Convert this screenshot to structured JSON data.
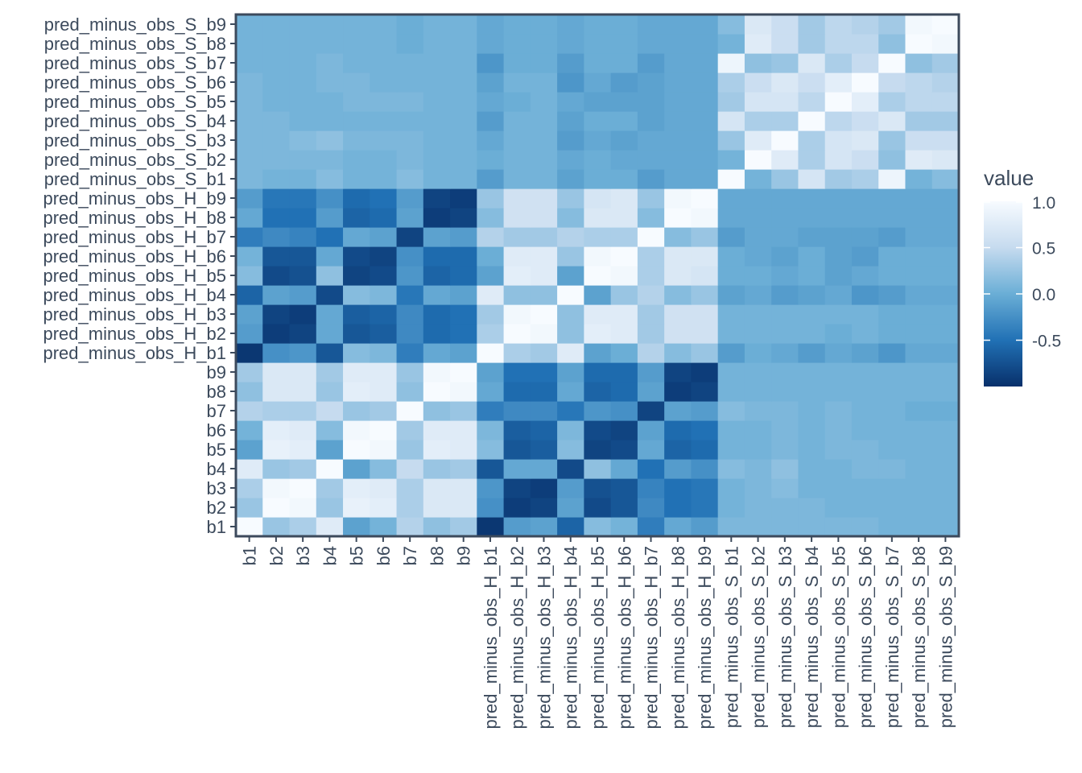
{
  "chart_data": {
    "type": "heatmap",
    "title": "",
    "xlabel": "",
    "ylabel": "",
    "categories": [
      "b1",
      "b2",
      "b3",
      "b4",
      "b5",
      "b6",
      "b7",
      "b8",
      "b9",
      "pred_minus_obs_H_b1",
      "pred_minus_obs_H_b2",
      "pred_minus_obs_H_b3",
      "pred_minus_obs_H_b4",
      "pred_minus_obs_H_b5",
      "pred_minus_obs_H_b6",
      "pred_minus_obs_H_b7",
      "pred_minus_obs_H_b8",
      "pred_minus_obs_H_b9",
      "pred_minus_obs_S_b1",
      "pred_minus_obs_S_b2",
      "pred_minus_obs_S_b3",
      "pred_minus_obs_S_b4",
      "pred_minus_obs_S_b5",
      "pred_minus_obs_S_b6",
      "pred_minus_obs_S_b7",
      "pred_minus_obs_S_b8",
      "pred_minus_obs_S_b9"
    ],
    "values": [
      [
        1.0,
        0.25,
        0.35,
        0.75,
        -0.1,
        0.05,
        0.4,
        0.2,
        0.3,
        -0.95,
        -0.15,
        -0.1,
        -0.6,
        0.15,
        0.05,
        -0.4,
        -0.05,
        -0.15,
        0.1,
        0.1,
        0.1,
        0.1,
        0.1,
        0.1,
        0.05,
        0.05,
        0.05
      ],
      [
        0.25,
        1.0,
        0.95,
        0.25,
        0.85,
        0.8,
        0.35,
        0.7,
        0.7,
        -0.25,
        -0.9,
        -0.85,
        -0.1,
        -0.8,
        -0.7,
        -0.3,
        -0.5,
        -0.45,
        0.05,
        0.1,
        0.1,
        0.1,
        0.05,
        0.05,
        0.05,
        0.05,
        0.05
      ],
      [
        0.35,
        0.95,
        1.0,
        0.3,
        0.8,
        0.75,
        0.35,
        0.7,
        0.7,
        -0.2,
        -0.85,
        -0.9,
        -0.15,
        -0.75,
        -0.7,
        -0.35,
        -0.5,
        -0.45,
        0.05,
        0.1,
        0.15,
        0.05,
        0.05,
        0.05,
        0.05,
        0.05,
        0.05
      ],
      [
        0.75,
        0.25,
        0.3,
        1.0,
        -0.1,
        0.15,
        0.5,
        0.25,
        0.3,
        -0.7,
        -0.05,
        -0.05,
        -0.8,
        0.2,
        -0.05,
        -0.5,
        -0.15,
        -0.25,
        0.15,
        0.1,
        0.2,
        0.05,
        0.05,
        0.1,
        0.1,
        0.05,
        0.05
      ],
      [
        -0.1,
        0.85,
        0.8,
        -0.1,
        1.0,
        0.95,
        0.25,
        0.8,
        0.75,
        0.15,
        -0.7,
        -0.65,
        0.15,
        -0.85,
        -0.8,
        -0.05,
        -0.6,
        -0.55,
        0.05,
        0.05,
        0.1,
        0.05,
        0.1,
        0.1,
        0.05,
        0.05,
        0.05
      ],
      [
        0.05,
        0.8,
        0.75,
        0.15,
        0.95,
        1.0,
        0.3,
        0.75,
        0.75,
        0.1,
        -0.65,
        -0.6,
        0.1,
        -0.8,
        -0.85,
        -0.1,
        -0.55,
        -0.5,
        0.05,
        0.05,
        0.1,
        0.05,
        0.1,
        0.05,
        0.05,
        0.05,
        0.05
      ],
      [
        0.4,
        0.35,
        0.35,
        0.5,
        0.25,
        0.3,
        1.0,
        0.2,
        0.25,
        -0.4,
        -0.3,
        -0.3,
        -0.45,
        -0.2,
        -0.25,
        -0.85,
        -0.1,
        -0.15,
        0.15,
        0.1,
        0.1,
        0.05,
        0.1,
        0.05,
        0.05,
        0.0,
        0.0
      ],
      [
        0.2,
        0.7,
        0.7,
        0.25,
        0.8,
        0.75,
        0.2,
        1.0,
        0.95,
        -0.05,
        -0.55,
        -0.55,
        -0.05,
        -0.6,
        -0.55,
        -0.1,
        -0.9,
        -0.85,
        0.05,
        0.05,
        0.05,
        0.05,
        0.05,
        0.05,
        0.05,
        0.05,
        0.05
      ],
      [
        0.3,
        0.7,
        0.7,
        0.3,
        0.75,
        0.75,
        0.25,
        0.95,
        1.0,
        -0.1,
        -0.5,
        -0.5,
        -0.1,
        -0.55,
        -0.55,
        -0.15,
        -0.85,
        -0.9,
        0.05,
        0.05,
        0.05,
        0.05,
        0.05,
        0.05,
        0.05,
        0.05,
        0.05
      ],
      [
        -0.95,
        -0.25,
        -0.2,
        -0.7,
        0.15,
        0.1,
        -0.4,
        -0.05,
        -0.1,
        1.0,
        0.35,
        0.3,
        0.75,
        -0.1,
        0.0,
        0.4,
        0.15,
        0.25,
        -0.15,
        0.0,
        -0.05,
        -0.15,
        -0.05,
        -0.1,
        -0.2,
        -0.05,
        -0.05
      ],
      [
        -0.15,
        -0.9,
        -0.85,
        -0.05,
        -0.7,
        -0.65,
        -0.3,
        -0.55,
        -0.5,
        0.35,
        1.0,
        0.95,
        0.2,
        0.8,
        0.75,
        0.3,
        0.6,
        0.6,
        0.05,
        0.05,
        0.05,
        0.05,
        0.0,
        0.05,
        0.0,
        0.0,
        0.0
      ],
      [
        -0.1,
        -0.85,
        -0.9,
        -0.05,
        -0.65,
        -0.6,
        -0.3,
        -0.55,
        -0.5,
        0.3,
        0.95,
        1.0,
        0.2,
        0.75,
        0.75,
        0.3,
        0.6,
        0.6,
        0.05,
        0.05,
        0.05,
        0.05,
        0.05,
        0.05,
        0.0,
        0.0,
        0.0
      ],
      [
        -0.6,
        -0.1,
        -0.15,
        -0.8,
        0.15,
        0.1,
        -0.45,
        -0.05,
        -0.1,
        0.75,
        0.2,
        0.2,
        1.0,
        -0.1,
        0.25,
        0.4,
        0.15,
        0.25,
        -0.1,
        -0.05,
        -0.15,
        -0.1,
        -0.05,
        -0.2,
        -0.15,
        -0.05,
        -0.05
      ],
      [
        0.15,
        -0.8,
        -0.75,
        0.2,
        -0.85,
        -0.8,
        -0.2,
        -0.6,
        -0.55,
        -0.1,
        0.8,
        0.75,
        -0.1,
        1.0,
        0.95,
        0.35,
        0.7,
        0.65,
        0.0,
        0.0,
        -0.05,
        0.0,
        -0.1,
        -0.05,
        0.0,
        0.0,
        0.0
      ],
      [
        0.05,
        -0.7,
        -0.7,
        -0.05,
        -0.8,
        -0.85,
        -0.25,
        -0.55,
        -0.55,
        0.0,
        0.75,
        0.75,
        0.25,
        0.95,
        1.0,
        0.35,
        0.7,
        0.7,
        0.0,
        -0.05,
        -0.1,
        0.0,
        -0.1,
        -0.15,
        0.0,
        0.0,
        0.0
      ],
      [
        -0.4,
        -0.3,
        -0.35,
        -0.5,
        -0.05,
        -0.1,
        -0.85,
        -0.1,
        -0.15,
        0.4,
        0.3,
        0.3,
        0.4,
        0.35,
        0.35,
        1.0,
        0.15,
        0.25,
        -0.15,
        -0.05,
        -0.05,
        -0.1,
        -0.1,
        -0.1,
        -0.15,
        -0.05,
        -0.05
      ],
      [
        -0.05,
        -0.5,
        -0.5,
        -0.15,
        -0.6,
        -0.55,
        -0.1,
        -0.9,
        -0.85,
        0.15,
        0.6,
        0.6,
        0.15,
        0.7,
        0.7,
        0.15,
        1.0,
        0.95,
        -0.05,
        -0.05,
        -0.05,
        -0.05,
        -0.05,
        -0.05,
        -0.05,
        -0.05,
        -0.05
      ],
      [
        -0.15,
        -0.45,
        -0.45,
        -0.25,
        -0.55,
        -0.5,
        -0.15,
        -0.85,
        -0.9,
        0.25,
        0.6,
        0.6,
        0.25,
        0.65,
        0.7,
        0.25,
        0.95,
        1.0,
        -0.05,
        -0.05,
        -0.05,
        -0.05,
        -0.05,
        -0.05,
        -0.05,
        -0.05,
        -0.05
      ],
      [
        0.1,
        0.05,
        0.05,
        0.15,
        0.05,
        0.05,
        0.15,
        0.05,
        0.05,
        -0.15,
        0.05,
        0.05,
        -0.1,
        0.0,
        0.0,
        -0.15,
        -0.05,
        -0.05,
        1.0,
        0.05,
        0.25,
        0.65,
        0.3,
        0.35,
        0.9,
        0.05,
        0.15
      ],
      [
        0.1,
        0.1,
        0.1,
        0.1,
        0.05,
        0.05,
        0.1,
        0.05,
        0.05,
        0.0,
        0.05,
        0.05,
        -0.05,
        0.0,
        -0.05,
        -0.05,
        -0.05,
        -0.05,
        0.05,
        1.0,
        0.75,
        0.35,
        0.65,
        0.55,
        0.2,
        0.75,
        0.7
      ],
      [
        0.1,
        0.1,
        0.15,
        0.2,
        0.1,
        0.1,
        0.1,
        0.05,
        0.05,
        -0.05,
        0.05,
        0.05,
        -0.15,
        -0.05,
        -0.1,
        -0.05,
        -0.05,
        -0.05,
        0.25,
        0.75,
        1.0,
        0.35,
        0.65,
        0.7,
        0.25,
        0.55,
        0.55
      ],
      [
        0.1,
        0.1,
        0.05,
        0.05,
        0.05,
        0.05,
        0.05,
        0.05,
        0.05,
        -0.15,
        0.05,
        0.05,
        -0.1,
        0.0,
        0.0,
        -0.1,
        -0.05,
        -0.05,
        0.65,
        0.35,
        0.35,
        1.0,
        0.45,
        0.55,
        0.7,
        0.3,
        0.3
      ],
      [
        0.1,
        0.05,
        0.05,
        0.05,
        0.1,
        0.1,
        0.1,
        0.05,
        0.05,
        -0.05,
        0.0,
        0.05,
        -0.05,
        -0.1,
        -0.1,
        -0.1,
        -0.05,
        -0.05,
        0.3,
        0.65,
        0.65,
        0.45,
        1.0,
        0.8,
        0.35,
        0.45,
        0.45
      ],
      [
        0.1,
        0.05,
        0.05,
        0.1,
        0.1,
        0.05,
        0.05,
        0.05,
        0.05,
        -0.1,
        0.05,
        0.05,
        -0.2,
        -0.05,
        -0.15,
        -0.1,
        -0.05,
        -0.05,
        0.35,
        0.55,
        0.7,
        0.55,
        0.8,
        1.0,
        0.5,
        0.45,
        0.4
      ],
      [
        0.05,
        0.05,
        0.05,
        0.1,
        0.05,
        0.05,
        0.05,
        0.05,
        0.05,
        -0.2,
        0.0,
        0.0,
        -0.15,
        0.0,
        0.0,
        -0.15,
        -0.05,
        -0.05,
        0.9,
        0.2,
        0.25,
        0.7,
        0.35,
        0.5,
        1.0,
        0.2,
        0.3
      ],
      [
        0.05,
        0.05,
        0.05,
        0.05,
        0.05,
        0.05,
        0.0,
        0.05,
        0.05,
        -0.05,
        0.0,
        0.0,
        -0.05,
        0.0,
        0.0,
        -0.05,
        -0.05,
        -0.05,
        0.05,
        0.75,
        0.55,
        0.3,
        0.45,
        0.45,
        0.2,
        1.0,
        0.95
      ],
      [
        0.05,
        0.05,
        0.05,
        0.05,
        0.05,
        0.05,
        0.0,
        0.05,
        0.05,
        -0.05,
        0.0,
        0.0,
        -0.05,
        0.0,
        0.0,
        -0.05,
        -0.05,
        -0.05,
        0.15,
        0.7,
        0.55,
        0.3,
        0.45,
        0.4,
        0.3,
        0.95,
        1.0
      ]
    ],
    "legend": {
      "title": "value",
      "ticks": [
        {
          "value": 1.0,
          "label": "1.0"
        },
        {
          "value": 0.5,
          "label": "0.5"
        },
        {
          "value": 0.0,
          "label": "0.0"
        },
        {
          "value": -0.5,
          "label": "-0.5"
        }
      ],
      "range": [
        -1.0,
        1.0
      ],
      "placement": "right"
    },
    "colors": {
      "high": "#f7fbff",
      "mid": "#6aaed6",
      "low": "#08306b",
      "axis": "#3c4a5c"
    },
    "grid": false
  }
}
